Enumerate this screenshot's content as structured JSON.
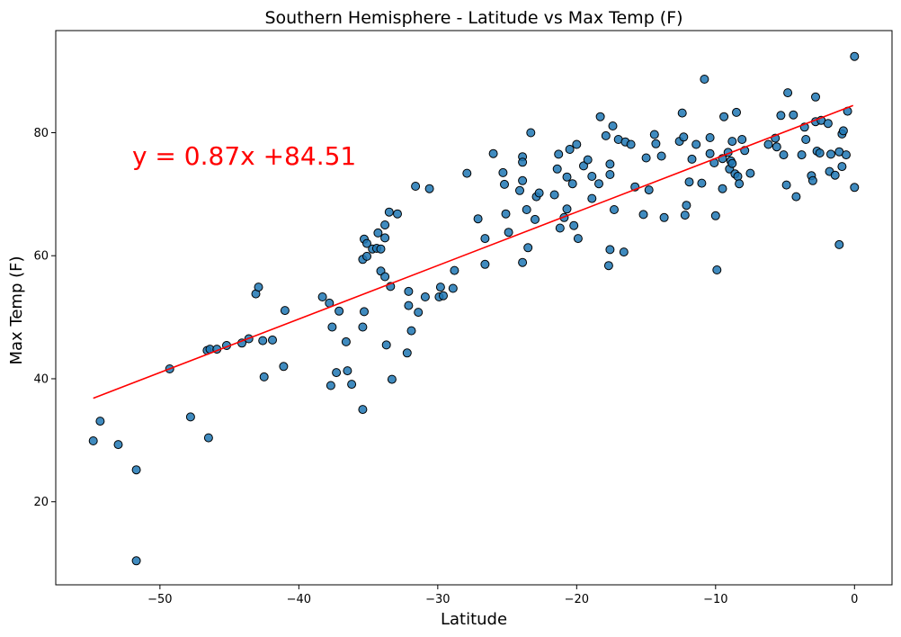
{
  "chart_data": {
    "type": "scatter",
    "title": "Southern Hemisphere - Latitude vs Max Temp (F)",
    "xlabel": "Latitude",
    "ylabel": "Max Temp (F)",
    "xlim": [
      -57.5,
      2.7
    ],
    "ylim": [
      6.5,
      96.6
    ],
    "xticks": [
      -50,
      -40,
      -30,
      -20,
      -10,
      0
    ],
    "yticks": [
      20,
      40,
      60,
      80
    ],
    "grid": false,
    "marker_color": "#1f77b4",
    "marker_edge_color": "#000000",
    "regression": {
      "slope": 0.87,
      "intercept": 84.51,
      "x_range": [
        -54.8,
        -0.1
      ],
      "color": "#ff0000",
      "equation_label": "y = 0.87x +84.51",
      "label_anchor": [
        -52,
        74.8
      ]
    },
    "points": [
      [
        -54.8,
        29.9
      ],
      [
        -54.3,
        33.1
      ],
      [
        -53.0,
        29.3
      ],
      [
        -51.7,
        25.2
      ],
      [
        -51.7,
        10.4
      ],
      [
        -49.3,
        41.6
      ],
      [
        -47.8,
        33.8
      ],
      [
        -46.6,
        44.6
      ],
      [
        -46.5,
        30.4
      ],
      [
        -46.4,
        44.8
      ],
      [
        -45.9,
        44.8
      ],
      [
        -45.2,
        45.4
      ],
      [
        -44.1,
        45.8
      ],
      [
        -43.6,
        46.5
      ],
      [
        -43.1,
        53.8
      ],
      [
        -42.9,
        54.9
      ],
      [
        -42.6,
        46.2
      ],
      [
        -42.5,
        40.3
      ],
      [
        -41.9,
        46.3
      ],
      [
        -41.1,
        42.0
      ],
      [
        -41.0,
        51.1
      ],
      [
        -38.3,
        53.3
      ],
      [
        -37.8,
        52.3
      ],
      [
        -37.7,
        38.9
      ],
      [
        -37.6,
        48.4
      ],
      [
        -37.3,
        41.0
      ],
      [
        -37.1,
        51.0
      ],
      [
        -36.6,
        46.0
      ],
      [
        -36.5,
        41.3
      ],
      [
        -36.2,
        39.1
      ],
      [
        -35.4,
        35.0
      ],
      [
        -35.4,
        48.4
      ],
      [
        -35.3,
        50.9
      ],
      [
        -35.4,
        59.4
      ],
      [
        -35.3,
        62.7
      ],
      [
        -35.1,
        62.0
      ],
      [
        -35.1,
        59.9
      ],
      [
        -34.7,
        61.1
      ],
      [
        -34.4,
        61.2
      ],
      [
        -34.3,
        63.7
      ],
      [
        -34.1,
        61.1
      ],
      [
        -34.1,
        57.5
      ],
      [
        -33.8,
        65.0
      ],
      [
        -33.8,
        62.9
      ],
      [
        -33.7,
        45.5
      ],
      [
        -33.8,
        56.6
      ],
      [
        -33.5,
        67.1
      ],
      [
        -33.4,
        55.0
      ],
      [
        -33.3,
        39.9
      ],
      [
        -32.9,
        66.8
      ],
      [
        -32.2,
        44.2
      ],
      [
        -32.1,
        51.9
      ],
      [
        -32.1,
        54.2
      ],
      [
        -31.9,
        47.8
      ],
      [
        -31.6,
        71.3
      ],
      [
        -31.4,
        50.8
      ],
      [
        -30.9,
        53.3
      ],
      [
        -30.6,
        70.9
      ],
      [
        -29.9,
        53.3
      ],
      [
        -29.8,
        54.9
      ],
      [
        -29.6,
        53.5
      ],
      [
        -28.9,
        54.7
      ],
      [
        -28.8,
        57.6
      ],
      [
        -27.9,
        73.4
      ],
      [
        -27.1,
        66.0
      ],
      [
        -26.6,
        62.8
      ],
      [
        -26.6,
        58.6
      ],
      [
        -26.0,
        76.6
      ],
      [
        -25.3,
        73.5
      ],
      [
        -25.2,
        71.6
      ],
      [
        -25.1,
        66.8
      ],
      [
        -24.9,
        63.8
      ],
      [
        -24.1,
        70.6
      ],
      [
        -23.9,
        76.1
      ],
      [
        -23.9,
        72.2
      ],
      [
        -23.9,
        75.2
      ],
      [
        -23.9,
        58.9
      ],
      [
        -23.6,
        67.5
      ],
      [
        -23.5,
        61.3
      ],
      [
        -23.3,
        80.0
      ],
      [
        -23.0,
        65.9
      ],
      [
        -22.9,
        69.6
      ],
      [
        -22.7,
        70.2
      ],
      [
        -21.6,
        69.9
      ],
      [
        -21.4,
        74.1
      ],
      [
        -21.3,
        76.5
      ],
      [
        -21.2,
        64.5
      ],
      [
        -20.9,
        66.2
      ],
      [
        -20.7,
        72.8
      ],
      [
        -20.7,
        67.6
      ],
      [
        -20.5,
        77.3
      ],
      [
        -20.3,
        71.7
      ],
      [
        -20.2,
        64.9
      ],
      [
        -20.0,
        78.1
      ],
      [
        -19.9,
        62.8
      ],
      [
        -19.5,
        74.6
      ],
      [
        -19.2,
        75.6
      ],
      [
        -18.9,
        72.9
      ],
      [
        -18.9,
        69.3
      ],
      [
        -18.4,
        71.7
      ],
      [
        -18.3,
        82.6
      ],
      [
        -17.9,
        79.5
      ],
      [
        -17.7,
        58.4
      ],
      [
        -17.6,
        73.2
      ],
      [
        -17.6,
        61.0
      ],
      [
        -17.6,
        74.9
      ],
      [
        -17.4,
        81.1
      ],
      [
        -17.3,
        67.5
      ],
      [
        -17.0,
        78.9
      ],
      [
        -16.6,
        60.6
      ],
      [
        -16.5,
        78.5
      ],
      [
        -16.1,
        78.1
      ],
      [
        -15.8,
        71.2
      ],
      [
        -15.2,
        66.7
      ],
      [
        -15.0,
        75.9
      ],
      [
        -14.8,
        70.7
      ],
      [
        -14.4,
        79.7
      ],
      [
        -14.3,
        78.2
      ],
      [
        -13.9,
        76.2
      ],
      [
        -13.7,
        66.2
      ],
      [
        -12.6,
        78.6
      ],
      [
        -12.4,
        83.2
      ],
      [
        -12.3,
        79.3
      ],
      [
        -12.2,
        66.6
      ],
      [
        -12.1,
        68.2
      ],
      [
        -11.9,
        72.0
      ],
      [
        -11.7,
        75.7
      ],
      [
        -11.4,
        78.1
      ],
      [
        -11.0,
        71.8
      ],
      [
        -10.8,
        88.7
      ],
      [
        -10.4,
        79.2
      ],
      [
        -10.4,
        76.6
      ],
      [
        -10.1,
        75.1
      ],
      [
        -10.0,
        66.5
      ],
      [
        -9.9,
        57.7
      ],
      [
        -9.5,
        70.9
      ],
      [
        -9.5,
        75.8
      ],
      [
        -9.4,
        82.6
      ],
      [
        -9.1,
        76.8
      ],
      [
        -9.0,
        74.1
      ],
      [
        -8.9,
        75.4
      ],
      [
        -8.8,
        75.0
      ],
      [
        -8.8,
        78.6
      ],
      [
        -8.6,
        73.3
      ],
      [
        -8.5,
        83.3
      ],
      [
        -8.4,
        72.9
      ],
      [
        -8.3,
        71.7
      ],
      [
        -8.1,
        78.9
      ],
      [
        -7.9,
        77.1
      ],
      [
        -7.5,
        73.4
      ],
      [
        -6.2,
        78.1
      ],
      [
        -5.7,
        79.1
      ],
      [
        -5.6,
        77.7
      ],
      [
        -5.3,
        82.8
      ],
      [
        -5.1,
        76.4
      ],
      [
        -4.9,
        71.5
      ],
      [
        -4.8,
        86.5
      ],
      [
        -4.4,
        82.9
      ],
      [
        -4.2,
        69.6
      ],
      [
        -3.8,
        76.4
      ],
      [
        -3.6,
        80.9
      ],
      [
        -3.5,
        78.9
      ],
      [
        -3.1,
        73.0
      ],
      [
        -3.0,
        72.2
      ],
      [
        -2.8,
        85.8
      ],
      [
        -2.8,
        81.8
      ],
      [
        -2.7,
        77.0
      ],
      [
        -2.5,
        76.7
      ],
      [
        -2.4,
        82.0
      ],
      [
        -1.9,
        81.5
      ],
      [
        -1.8,
        73.7
      ],
      [
        -1.7,
        76.5
      ],
      [
        -1.4,
        73.1
      ],
      [
        -1.1,
        76.9
      ],
      [
        -1.1,
        61.8
      ],
      [
        -0.9,
        74.5
      ],
      [
        -0.9,
        79.8
      ],
      [
        -0.8,
        80.3
      ],
      [
        -0.6,
        76.4
      ],
      [
        -0.5,
        83.5
      ],
      [
        0.0,
        71.1
      ],
      [
        0.0,
        92.4
      ]
    ]
  }
}
